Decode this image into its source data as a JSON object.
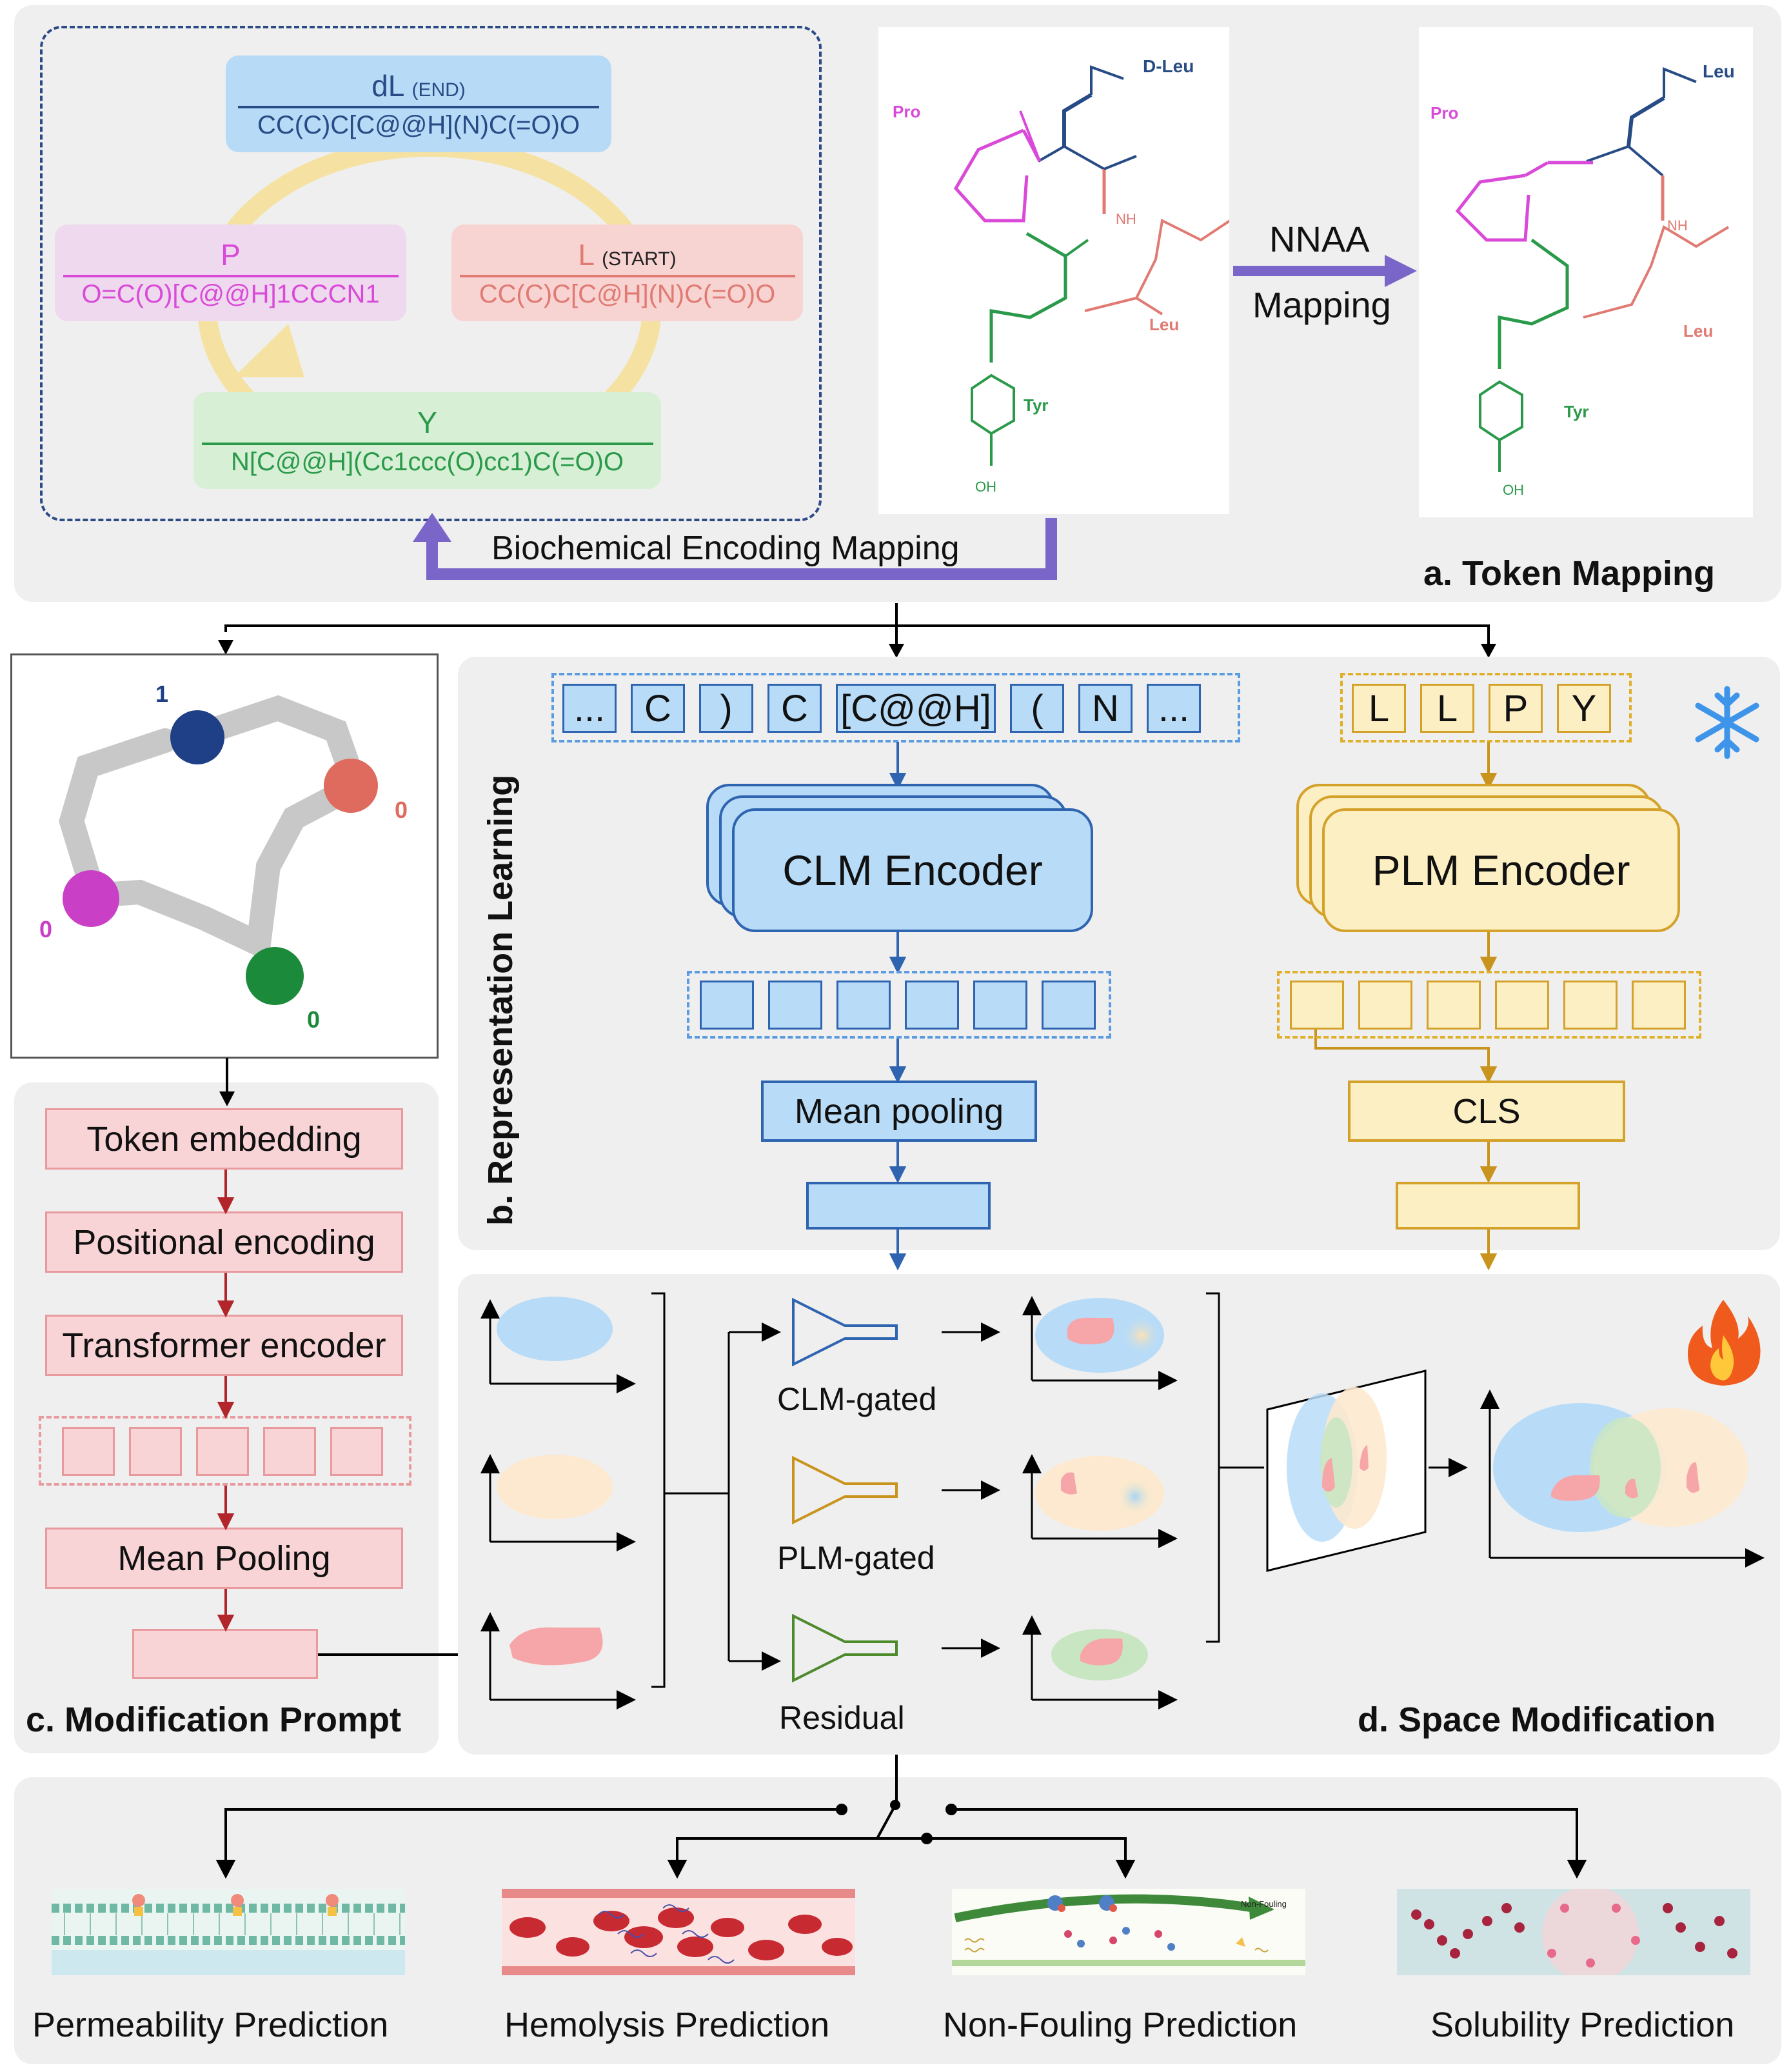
{
  "panel_a": {
    "title": "a. Token Mapping",
    "cycle": {
      "dL": {
        "name": "dL",
        "tag": "(END)",
        "smiles": "CC(C)C[C@@H](N)C(=O)O",
        "color": "#274b85",
        "bg": "#b7dbf7"
      },
      "L": {
        "name": "L",
        "tag": "(START)",
        "smiles": "CC(C)C[C@H](N)C(=O)O",
        "color": "#e07a72",
        "bg": "#f7d3d2"
      },
      "P": {
        "name": "P",
        "smiles": "O=C(O)[C@@H]1CCCN1",
        "color": "#d94ad8",
        "bg": "#efd9ee"
      },
      "Y": {
        "name": "Y",
        "smiles": "N[C@@H](Cc1ccc(O)cc1)C(=O)O",
        "color": "#2a9a4a",
        "bg": "#d7efd5"
      }
    },
    "biochem_label": "Biochemical Encoding Mapping",
    "nnaa_label_1": "NNAA",
    "nnaa_label_2": "Mapping",
    "mol1": {
      "pro": "Pro",
      "dleu": "D-Leu",
      "leu": "Leu",
      "tyr": "Tyr",
      "oh": "OH",
      "nh": "NH",
      "n": "N",
      "hn": "H"
    },
    "mol2": {
      "pro": "Pro",
      "leu_top": "Leu",
      "leu": "Leu",
      "tyr": "Tyr",
      "oh": "OH",
      "nh": "NH"
    }
  },
  "graph3d": {
    "node1": "1",
    "node_red": "0",
    "node_purple": "0",
    "node_green": "0"
  },
  "panel_b": {
    "title": "b. Representation Learning",
    "clm_tokens": [
      "...",
      "C",
      ")",
      "C",
      "[C@@H]",
      "(",
      "N",
      "..."
    ],
    "plm_tokens": [
      "L",
      "L",
      "P",
      "Y"
    ],
    "clm_encoder": "CLM Encoder",
    "plm_encoder": "PLM Encoder",
    "mean_pooling": "Mean pooling",
    "cls": "CLS",
    "frozen_icon": "snowflake-icon"
  },
  "panel_c": {
    "title": "c. Modification Prompt",
    "steps": [
      "Token embedding",
      "Positional encoding",
      "Transformer encoder",
      "Mean Pooling"
    ]
  },
  "panel_d": {
    "title": "d. Space Modification",
    "gates": [
      "CLM-gated",
      "PLM-gated",
      "Residual"
    ],
    "trainable_icon": "fire-icon"
  },
  "tasks": [
    "Permeability Prediction",
    "Hemolysis Prediction",
    "Non-Fouling Prediction",
    "Solubility Prediction"
  ],
  "nonfouling_caption": "Non-Fouling",
  "colors": {
    "clm": "#2f64b0",
    "clm_fill": "#b8dcf8",
    "plm": "#d4a22a",
    "plm_fill": "#fcefc4",
    "prompt": "#b1252b",
    "purple_arrow": "#7a65c8"
  }
}
